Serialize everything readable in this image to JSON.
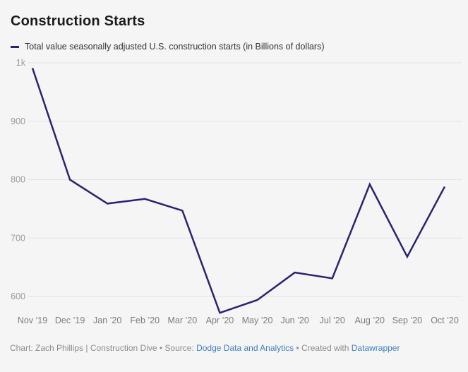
{
  "header": {
    "title": "Construction Starts"
  },
  "legend": {
    "label": "Total value seasonally adjusted U.S. construction starts (in Billions of dollars)"
  },
  "chart_data": {
    "type": "line",
    "title": "Construction Starts",
    "series_name": "Total value seasonally adjusted U.S. construction starts (in Billions of dollars)",
    "categories": [
      "Nov ’19",
      "Dec ’19",
      "Jan ’20",
      "Feb ’20",
      "Mar ’20",
      "Apr ’20",
      "May ’20",
      "Jun ’20",
      "Jul ’20",
      "Aug ’20",
      "Sep ’20",
      "Oct ’20"
    ],
    "values": [
      991,
      800,
      759,
      767,
      747,
      572,
      594,
      641,
      631,
      792,
      668,
      788
    ],
    "xlabel": "",
    "ylabel": "Billions of dollars",
    "ylim": [
      560,
      1010
    ],
    "grid": "horizontal",
    "legend_position": "top-left",
    "yticks": [
      {
        "value": 1000,
        "label": "1k"
      },
      {
        "value": 900,
        "label": "900"
      },
      {
        "value": 800,
        "label": "800"
      },
      {
        "value": 700,
        "label": "700"
      },
      {
        "value": 600,
        "label": "600"
      }
    ],
    "colors": {
      "line": "#2a2370",
      "grid": "#e2e2e4",
      "y_tick": "#9b9b9b",
      "x_tick": "#7c7c7c",
      "background": "#f5f5f6"
    }
  },
  "footer": {
    "credit": "Chart: Zach Phillips | Construction Dive • Source: ",
    "source_link": "Dodge Data and Analytics",
    "created_with": " • Created with ",
    "tool_link": "Datawrapper"
  }
}
